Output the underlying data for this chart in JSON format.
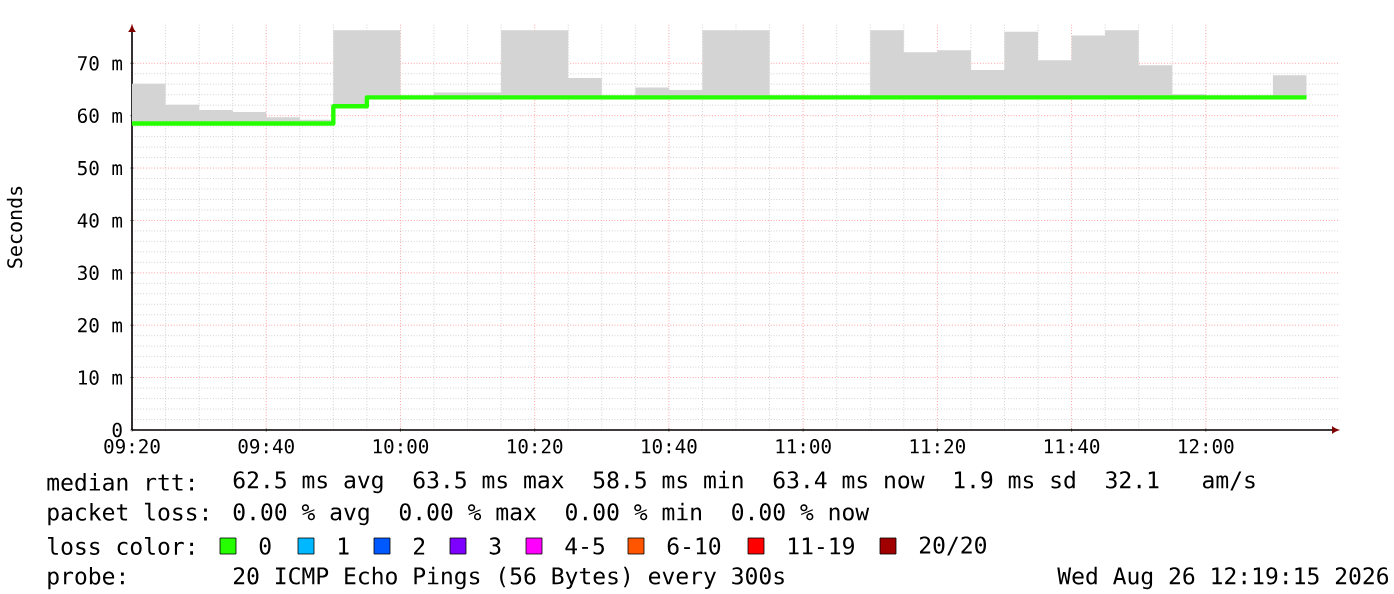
{
  "chart_data": {
    "type": "line",
    "ylabel": "Seconds",
    "x": [
      "2026-08-26T09:20",
      "2026-08-26T09:25",
      "2026-08-26T09:30",
      "2026-08-26T09:35",
      "2026-08-26T09:40",
      "2026-08-26T09:45",
      "2026-08-26T09:50",
      "2026-08-26T09:55",
      "2026-08-26T10:00",
      "2026-08-26T10:05",
      "2026-08-26T10:10",
      "2026-08-26T10:15",
      "2026-08-26T10:20",
      "2026-08-26T10:25",
      "2026-08-26T10:30",
      "2026-08-26T10:35",
      "2026-08-26T10:40",
      "2026-08-26T10:45",
      "2026-08-26T10:50",
      "2026-08-26T10:55",
      "2026-08-26T11:00",
      "2026-08-26T11:05",
      "2026-08-26T11:10",
      "2026-08-26T11:15",
      "2026-08-26T11:20",
      "2026-08-26T11:25",
      "2026-08-26T11:30",
      "2026-08-26T11:35",
      "2026-08-26T11:40",
      "2026-08-26T11:45",
      "2026-08-26T11:50",
      "2026-08-26T11:55",
      "2026-08-26T12:00",
      "2026-08-26T12:05",
      "2026-08-26T12:10",
      "2026-08-26T12:15"
    ],
    "series": [
      {
        "type": "step",
        "color": "#26ff00",
        "values": [
          58.5,
          58.5,
          58.5,
          58.5,
          58.5,
          58.5,
          61.8,
          63.5,
          63.5,
          63.5,
          63.5,
          63.5,
          63.5,
          63.5,
          63.5,
          63.5,
          63.5,
          63.5,
          63.5,
          63.5,
          63.5,
          63.5,
          63.5,
          63.5,
          63.5,
          63.5,
          63.5,
          63.5,
          63.5,
          63.5,
          63.5,
          63.5,
          63.5,
          63.5,
          63.5,
          63.5
        ],
        "lower": [
          58.5,
          58.5,
          58.5,
          58.5,
          58.5,
          58.5,
          61.8,
          63.5,
          63.5,
          63.5,
          63.5,
          63.5,
          63.5,
          63.5,
          63.5,
          63.5,
          63.5,
          63.5,
          63.5,
          63.5,
          63.5,
          63.5,
          63.5,
          63.5,
          63.5,
          63.5,
          63.5,
          63.5,
          63.5,
          63.5,
          63.5,
          63.5,
          63.5,
          63.5,
          63.5,
          63.5
        ],
        "upper": [
          66.1,
          62.1,
          61.1,
          60.7,
          59.7,
          59.2,
          76.3,
          76.3,
          63.5,
          64.4,
          64.4,
          76.3,
          76.3,
          67.2,
          63.5,
          65.4,
          64.9,
          76.3,
          76.3,
          63.8,
          63.5,
          63.5,
          76.3,
          72.1,
          72.5,
          68.7,
          76.0,
          70.6,
          75.3,
          76.3,
          69.6,
          64.1,
          63.5,
          63.5,
          67.7,
          67.7
        ]
      }
    ],
    "xlim": [
      "2026-08-26T09:20",
      "2026-08-26T12:20"
    ],
    "xticks": [
      {
        "value": "2026-08-26T09:20",
        "label": "09:20"
      },
      {
        "value": "2026-08-26T09:40",
        "label": "09:40"
      },
      {
        "value": "2026-08-26T10:00",
        "label": "10:00"
      },
      {
        "value": "2026-08-26T10:20",
        "label": "10:20"
      },
      {
        "value": "2026-08-26T10:40",
        "label": "10:40"
      },
      {
        "value": "2026-08-26T11:00",
        "label": "11:00"
      },
      {
        "value": "2026-08-26T11:20",
        "label": "11:20"
      },
      {
        "value": "2026-08-26T11:40",
        "label": "11:40"
      },
      {
        "value": "2026-08-26T12:00",
        "label": "12:00"
      }
    ],
    "ylim": [
      0,
      77.5
    ],
    "yticks": [
      0,
      {
        "value": 10,
        "label": "10 m"
      },
      {
        "value": 20,
        "label": "20 m"
      },
      {
        "value": 30,
        "label": "30 m"
      },
      {
        "value": 40,
        "label": "40 m"
      },
      {
        "value": 50,
        "label": "50 m"
      },
      {
        "value": 60,
        "label": "60 m"
      },
      {
        "value": 70,
        "label": "70 m"
      }
    ],
    "grid": true,
    "annotations": [
      "median rtt:",
      "62.5 ms avg  63.5 ms max  58.5 ms min  63.4 ms now  1.9 ms sd  32.1   am/s",
      "packet loss:",
      "0.00 % avg  0.00 % max  0.00 % min  0.00 % now",
      "loss color:",
      "0",
      "1",
      "2",
      "3",
      "4-5",
      "6-10",
      "11-19",
      "20/20",
      "probe:",
      "20 ICMP Echo Pings (56 Bytes) every 300s",
      "Wed Aug 26 12:19:15 2026"
    ]
  }
}
